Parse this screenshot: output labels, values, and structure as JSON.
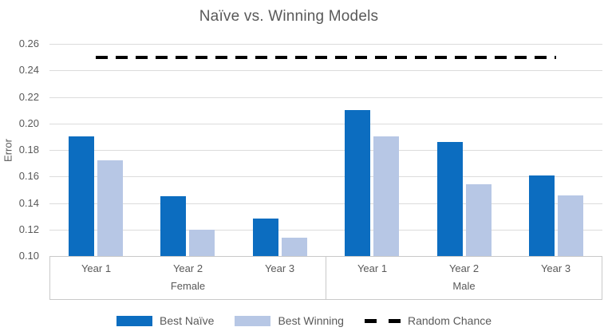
{
  "chart_data": {
    "type": "bar",
    "title": "Naïve vs. Winning Models",
    "ylabel": "Error",
    "ylim": [
      0.1,
      0.26
    ],
    "yticks": [
      "0.10",
      "0.12",
      "0.14",
      "0.16",
      "0.18",
      "0.20",
      "0.22",
      "0.24",
      "0.26"
    ],
    "grid": true,
    "legend_position": "bottom",
    "groups": [
      {
        "label": "Female",
        "categories": [
          "Year 1",
          "Year 2",
          "Year 3"
        ]
      },
      {
        "label": "Male",
        "categories": [
          "Year 1",
          "Year 2",
          "Year 3"
        ]
      }
    ],
    "series": [
      {
        "name": "Best Naïve",
        "color": "#0c6dc0",
        "values": [
          0.19,
          0.145,
          0.128,
          0.21,
          0.186,
          0.161
        ]
      },
      {
        "name": "Best Winning",
        "color": "#b7c7e5",
        "values": [
          0.172,
          0.12,
          0.114,
          0.19,
          0.154,
          0.146
        ]
      }
    ],
    "reference_line": {
      "name": "Random Chance",
      "value": 0.25,
      "style": "dashed",
      "color": "#000000"
    }
  },
  "style": {
    "text_color": "#595959",
    "gridline_color": "#dcdcdc",
    "axis_color": "#c9c9c9",
    "background": "#ffffff"
  }
}
